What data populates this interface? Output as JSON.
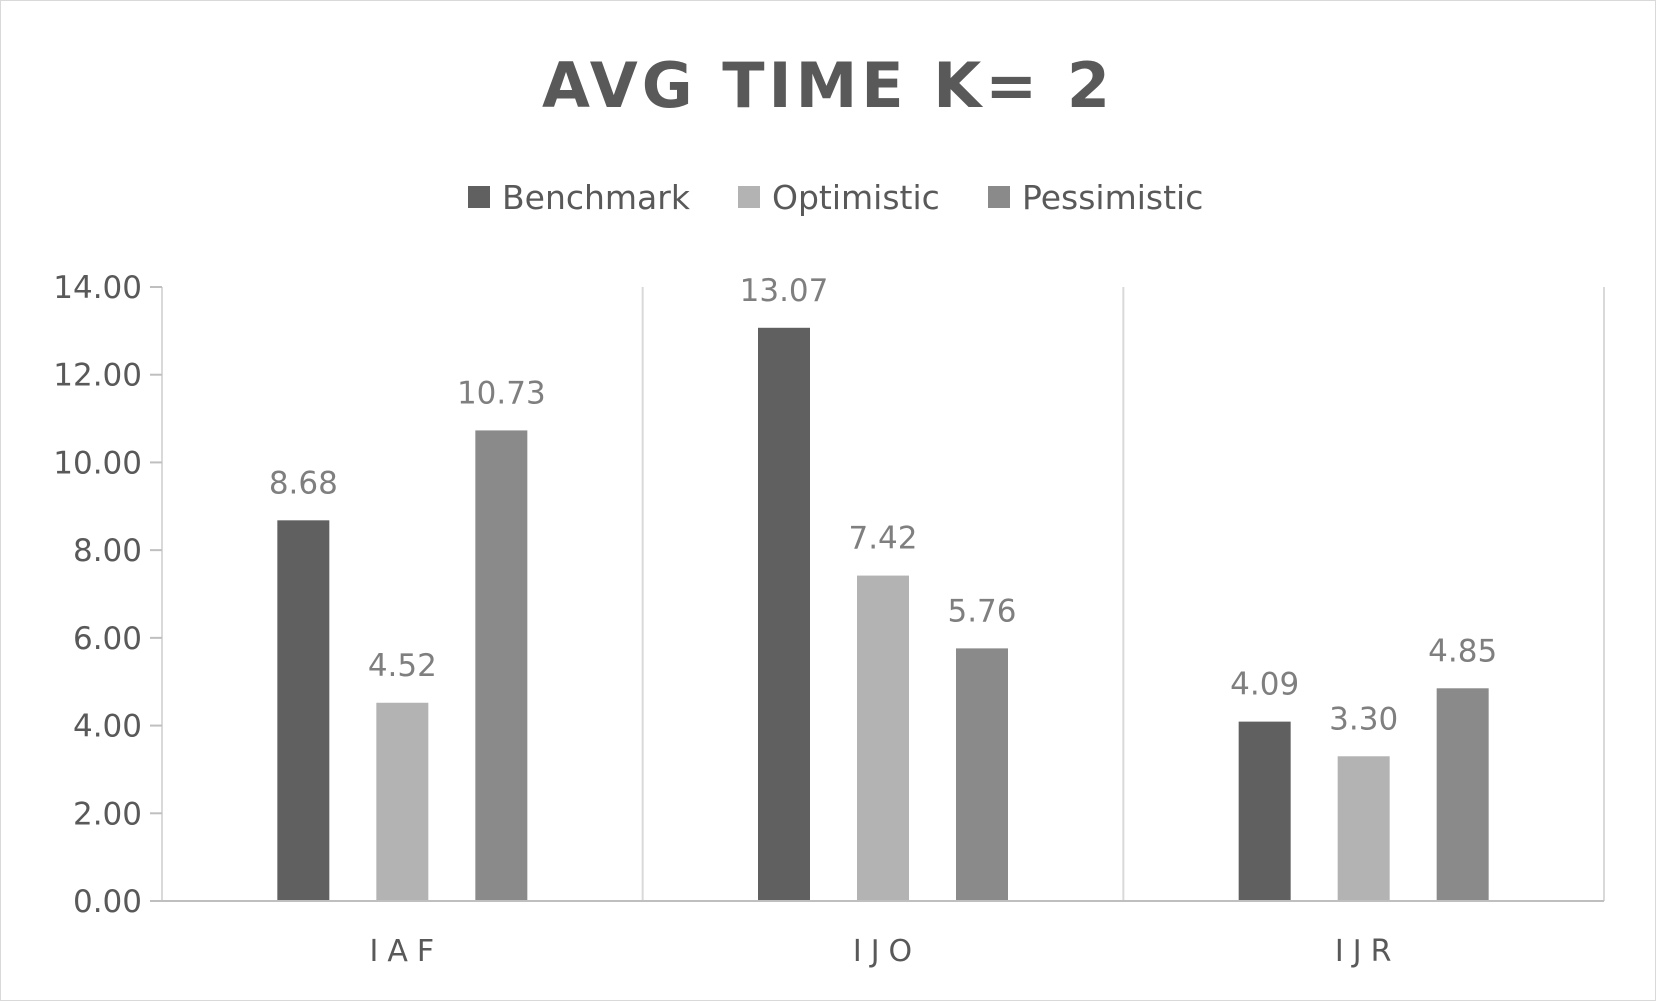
{
  "chart_data": {
    "type": "bar",
    "title": "AVG TIME K= 2",
    "categories": [
      "IAF",
      "IJO",
      "IJR"
    ],
    "series": [
      {
        "name": "Benchmark",
        "values": [
          8.68,
          13.07,
          4.09
        ],
        "labels": [
          "8.68",
          "13.07",
          "4.09"
        ],
        "color": "#606060"
      },
      {
        "name": "Optimistic",
        "values": [
          4.52,
          7.42,
          3.3
        ],
        "labels": [
          "4.52",
          "7.42",
          "3.30"
        ],
        "color": "#b3b3b3"
      },
      {
        "name": "Pessimistic",
        "values": [
          10.73,
          5.76,
          4.85
        ],
        "labels": [
          "10.73",
          "5.76",
          "4.85"
        ],
        "color": "#8a8a8a"
      }
    ],
    "ylim": [
      0,
      14
    ],
    "yticks": [
      "0.00",
      "2.00",
      "4.00",
      "6.00",
      "8.00",
      "10.00",
      "12.00",
      "14.00"
    ],
    "xlabel": "",
    "ylabel": "",
    "legend_position": "top",
    "grid": "vertical category separators"
  }
}
